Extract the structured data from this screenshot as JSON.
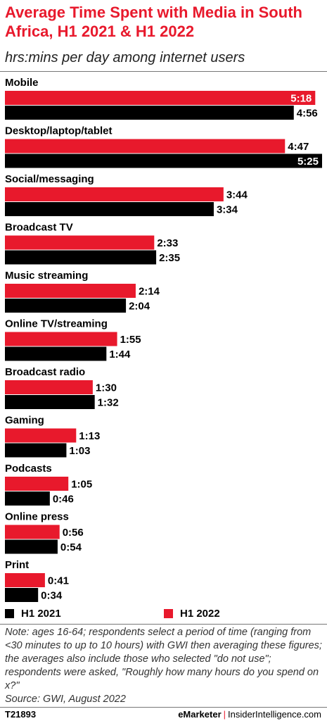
{
  "chart_data": {
    "type": "bar",
    "orientation": "horizontal",
    "title": "Average Time Spent with Media in South Africa, H1 2021 & H1 2022",
    "subtitle": "hrs:mins per day among internet users",
    "unit": "hrs:mins",
    "categories": [
      "Mobile",
      "Desktop/laptop/tablet",
      "Social/messaging",
      "Broadcast TV",
      "Music streaming",
      "Online TV/streaming",
      "Broadcast radio",
      "Gaming",
      "Podcasts",
      "Online press",
      "Print"
    ],
    "series": [
      {
        "name": "H1 2022",
        "color": "#e8192c",
        "values": [
          318,
          287,
          224,
          153,
          134,
          115,
          90,
          73,
          65,
          56,
          41
        ],
        "labels": [
          "5:18",
          "4:47",
          "3:44",
          "2:33",
          "2:14",
          "1:55",
          "1:30",
          "1:13",
          "1:05",
          "0:56",
          "0:41"
        ]
      },
      {
        "name": "H1 2021",
        "color": "#000000",
        "values": [
          296,
          325,
          214,
          155,
          124,
          104,
          92,
          63,
          46,
          54,
          34
        ],
        "labels": [
          "4:56",
          "5:25",
          "3:34",
          "2:35",
          "2:04",
          "1:44",
          "1:32",
          "1:03",
          "0:46",
          "0:54",
          "0:34"
        ]
      }
    ],
    "xlim": [
      0,
      325
    ],
    "grid": false,
    "legend": {
      "position": "bottom",
      "entries": [
        "H1 2021",
        "H1 2022"
      ]
    }
  },
  "footer": {
    "note": "Note: ages 16-64; respondents select a period of time (ranging from <30 minutes to up to 10 hours) with GWI then averaging these figures; the averages also include those who selected \"do not use\"; respondents were asked, \"Roughly how many hours do you spend on x?\"",
    "source": "Source:  GWI, August 2022",
    "code": "T21893",
    "brand_left": "eMarketer",
    "brand_right": "InsiderIntelligence.com"
  }
}
